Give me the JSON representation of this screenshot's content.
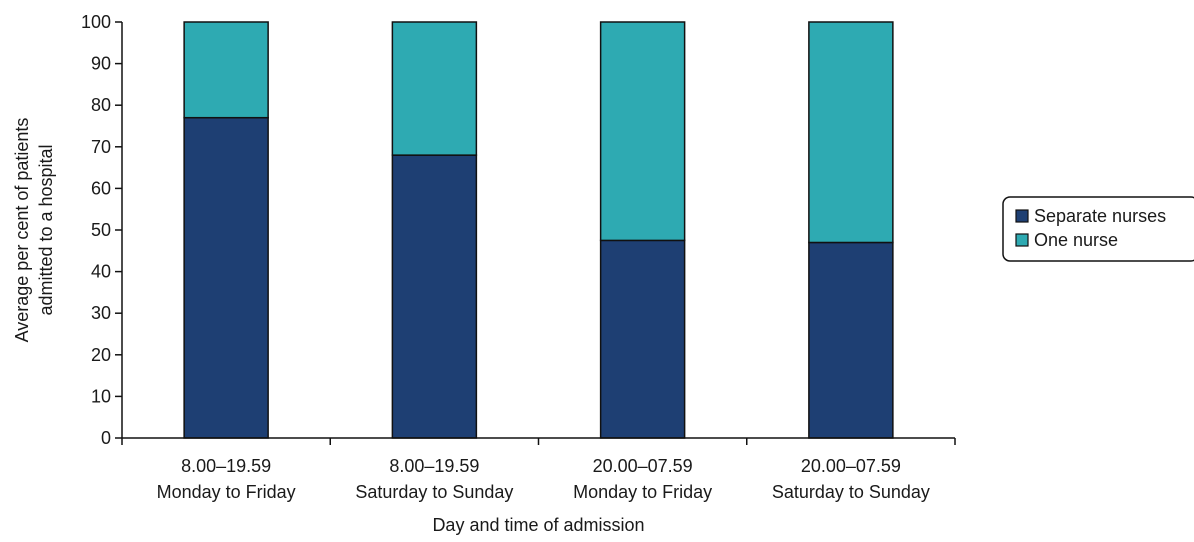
{
  "chart_data": {
    "type": "bar",
    "stacked": true,
    "categories": [
      [
        "8.00–19.59",
        "Monday to Friday"
      ],
      [
        "8.00–19.59",
        "Saturday to Sunday"
      ],
      [
        "20.00–07.59",
        "Monday to Friday"
      ],
      [
        "20.00–07.59",
        "Saturday to Sunday"
      ]
    ],
    "series": [
      {
        "name": "Separate nurses",
        "values": [
          77,
          68,
          47.5,
          47
        ],
        "color": "#1e3f73"
      },
      {
        "name": "One nurse",
        "values": [
          23,
          32,
          52.5,
          53
        ],
        "color": "#2eaab2"
      }
    ],
    "title": "",
    "xlabel": "Day and time of admission",
    "ylabel": [
      "Average per cent of patients",
      "admitted to a hospital"
    ],
    "ylim": [
      0,
      100
    ],
    "yticks": [
      0,
      10,
      20,
      30,
      40,
      50,
      60,
      70,
      80,
      90,
      100
    ],
    "grid": false,
    "legend_position": "right"
  }
}
